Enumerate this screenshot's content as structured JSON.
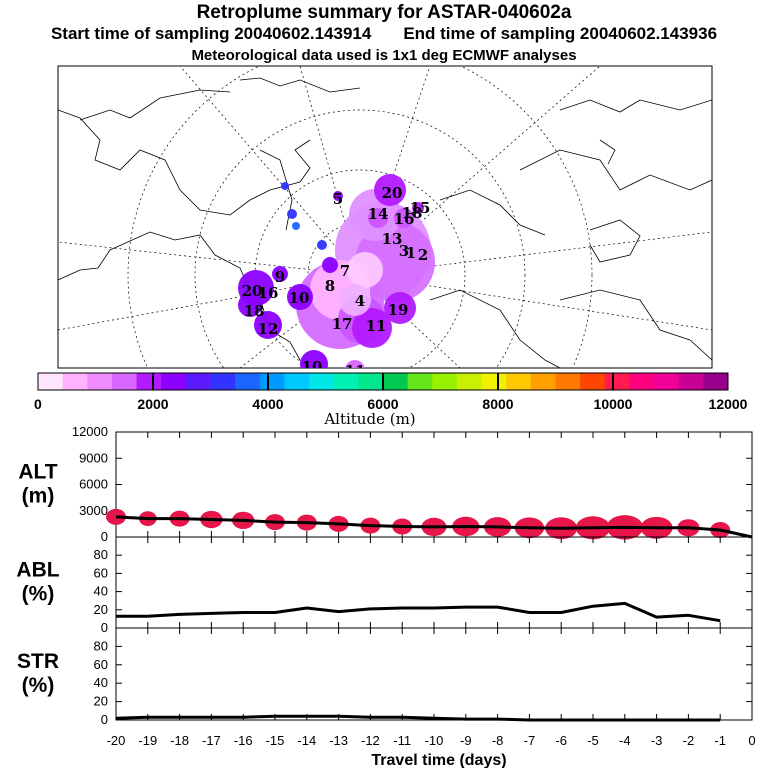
{
  "header": {
    "title": "Retroplume summary for ASTAR-040602a",
    "start_label": "Start time of sampling 20040602.143914",
    "end_label": "End time of sampling 20040602.143936",
    "met_label": "Meteorological data used is 1x1 deg ECMWF analyses"
  },
  "colorbar": {
    "label": "Altitude (m)",
    "tick_labels": [
      "0",
      "2000",
      "4000",
      "6000",
      "8000",
      "10000",
      "12000"
    ],
    "colors": [
      "#ffe6ff",
      "#ffb3ff",
      "#f08cff",
      "#d966ff",
      "#b31aff",
      "#8c00ff",
      "#5c1aff",
      "#3333ff",
      "#1a66ff",
      "#0099ff",
      "#00c8ff",
      "#00e6e6",
      "#00f0b4",
      "#00e68c",
      "#00c850",
      "#66e61a",
      "#99f000",
      "#c8f000",
      "#f0f000",
      "#ffc800",
      "#ffa000",
      "#ff7800",
      "#ff4600",
      "#ff1a50",
      "#ff0080",
      "#f00096",
      "#c80096",
      "#96008c"
    ]
  },
  "map": {
    "labels": [
      {
        "text": "20"
      },
      {
        "text": "18"
      },
      {
        "text": "14"
      },
      {
        "text": "16"
      },
      {
        "text": "15"
      },
      {
        "text": "13"
      },
      {
        "text": "3"
      },
      {
        "text": "1"
      },
      {
        "text": "2"
      },
      {
        "text": "9"
      },
      {
        "text": "20"
      },
      {
        "text": "16"
      },
      {
        "text": "18"
      },
      {
        "text": "12"
      },
      {
        "text": "17"
      },
      {
        "text": "11"
      },
      {
        "text": "10"
      },
      {
        "text": "10"
      },
      {
        "text": "11"
      },
      {
        "text": "7"
      },
      {
        "text": "8"
      },
      {
        "text": "19"
      },
      {
        "text": "5"
      },
      {
        "text": "4"
      }
    ]
  },
  "xaxis": {
    "label": "Travel time (days)"
  },
  "chart_data": [
    {
      "type": "line",
      "panel": "ALT",
      "ylabel_top": "ALT",
      "ylabel_bottom": "(m)",
      "ylim": [
        0,
        12000
      ],
      "yticks": [
        "0",
        "3000",
        "6000",
        "9000",
        "12000"
      ],
      "x": [
        -20,
        -19,
        -18,
        -17,
        -16,
        -15,
        -14,
        -13,
        -12,
        -11,
        -10,
        -9,
        -8,
        -7,
        -6,
        -5,
        -4,
        -3,
        -2,
        -1,
        0
      ],
      "values": [
        2300,
        2100,
        2100,
        2000,
        1900,
        1700,
        1650,
        1500,
        1300,
        1200,
        1150,
        1200,
        1150,
        1050,
        1000,
        1050,
        1100,
        1050,
        1050,
        800,
        0
      ],
      "plume_sizes": [
        0.5,
        0.4,
        0.5,
        0.6,
        0.6,
        0.5,
        0.5,
        0.5,
        0.5,
        0.5,
        0.7,
        0.8,
        0.8,
        0.9,
        1.0,
        1.1,
        1.2,
        1.0,
        0.6,
        0.5
      ],
      "plume_color": "#e6164b",
      "xlim": [
        -20,
        0
      ]
    },
    {
      "type": "line",
      "panel": "ABL",
      "ylabel_top": "ABL",
      "ylabel_bottom": "(%)",
      "ylim": [
        0,
        100
      ],
      "yticks": [
        "0",
        "20",
        "40",
        "60",
        "80"
      ],
      "x": [
        -20,
        -19,
        -18,
        -17,
        -16,
        -15,
        -14,
        -13,
        -12,
        -11,
        -10,
        -9,
        -8,
        -7,
        -6,
        -5,
        -4,
        -3,
        -2,
        -1
      ],
      "values": [
        13,
        13,
        15,
        16,
        17,
        17,
        22,
        18,
        21,
        22,
        22,
        23,
        23,
        17,
        17,
        24,
        27,
        12,
        14,
        8
      ],
      "xlim": [
        -20,
        0
      ]
    },
    {
      "type": "line",
      "panel": "STR",
      "ylabel_top": "STR",
      "ylabel_bottom": "(%)",
      "ylim": [
        0,
        100
      ],
      "yticks": [
        "0",
        "20",
        "40",
        "60",
        "80"
      ],
      "x": [
        -20,
        -19,
        -18,
        -17,
        -16,
        -15,
        -14,
        -13,
        -12,
        -11,
        -10,
        -9,
        -8,
        -7,
        -6,
        -5,
        -4,
        -3,
        -2,
        -1
      ],
      "values": [
        2,
        3,
        3,
        3,
        3,
        4,
        4,
        4,
        3,
        3,
        2,
        1,
        1,
        0,
        0,
        0,
        0,
        0,
        0,
        0
      ],
      "xticks": [
        "-20",
        "-19",
        "-18",
        "-17",
        "-16",
        "-15",
        "-14",
        "-13",
        "-12",
        "-11",
        "-10",
        "-9",
        "-8",
        "-7",
        "-6",
        "-5",
        "-4",
        "-3",
        "-2",
        "-1",
        "0"
      ],
      "xlim": [
        -20,
        0
      ]
    }
  ]
}
